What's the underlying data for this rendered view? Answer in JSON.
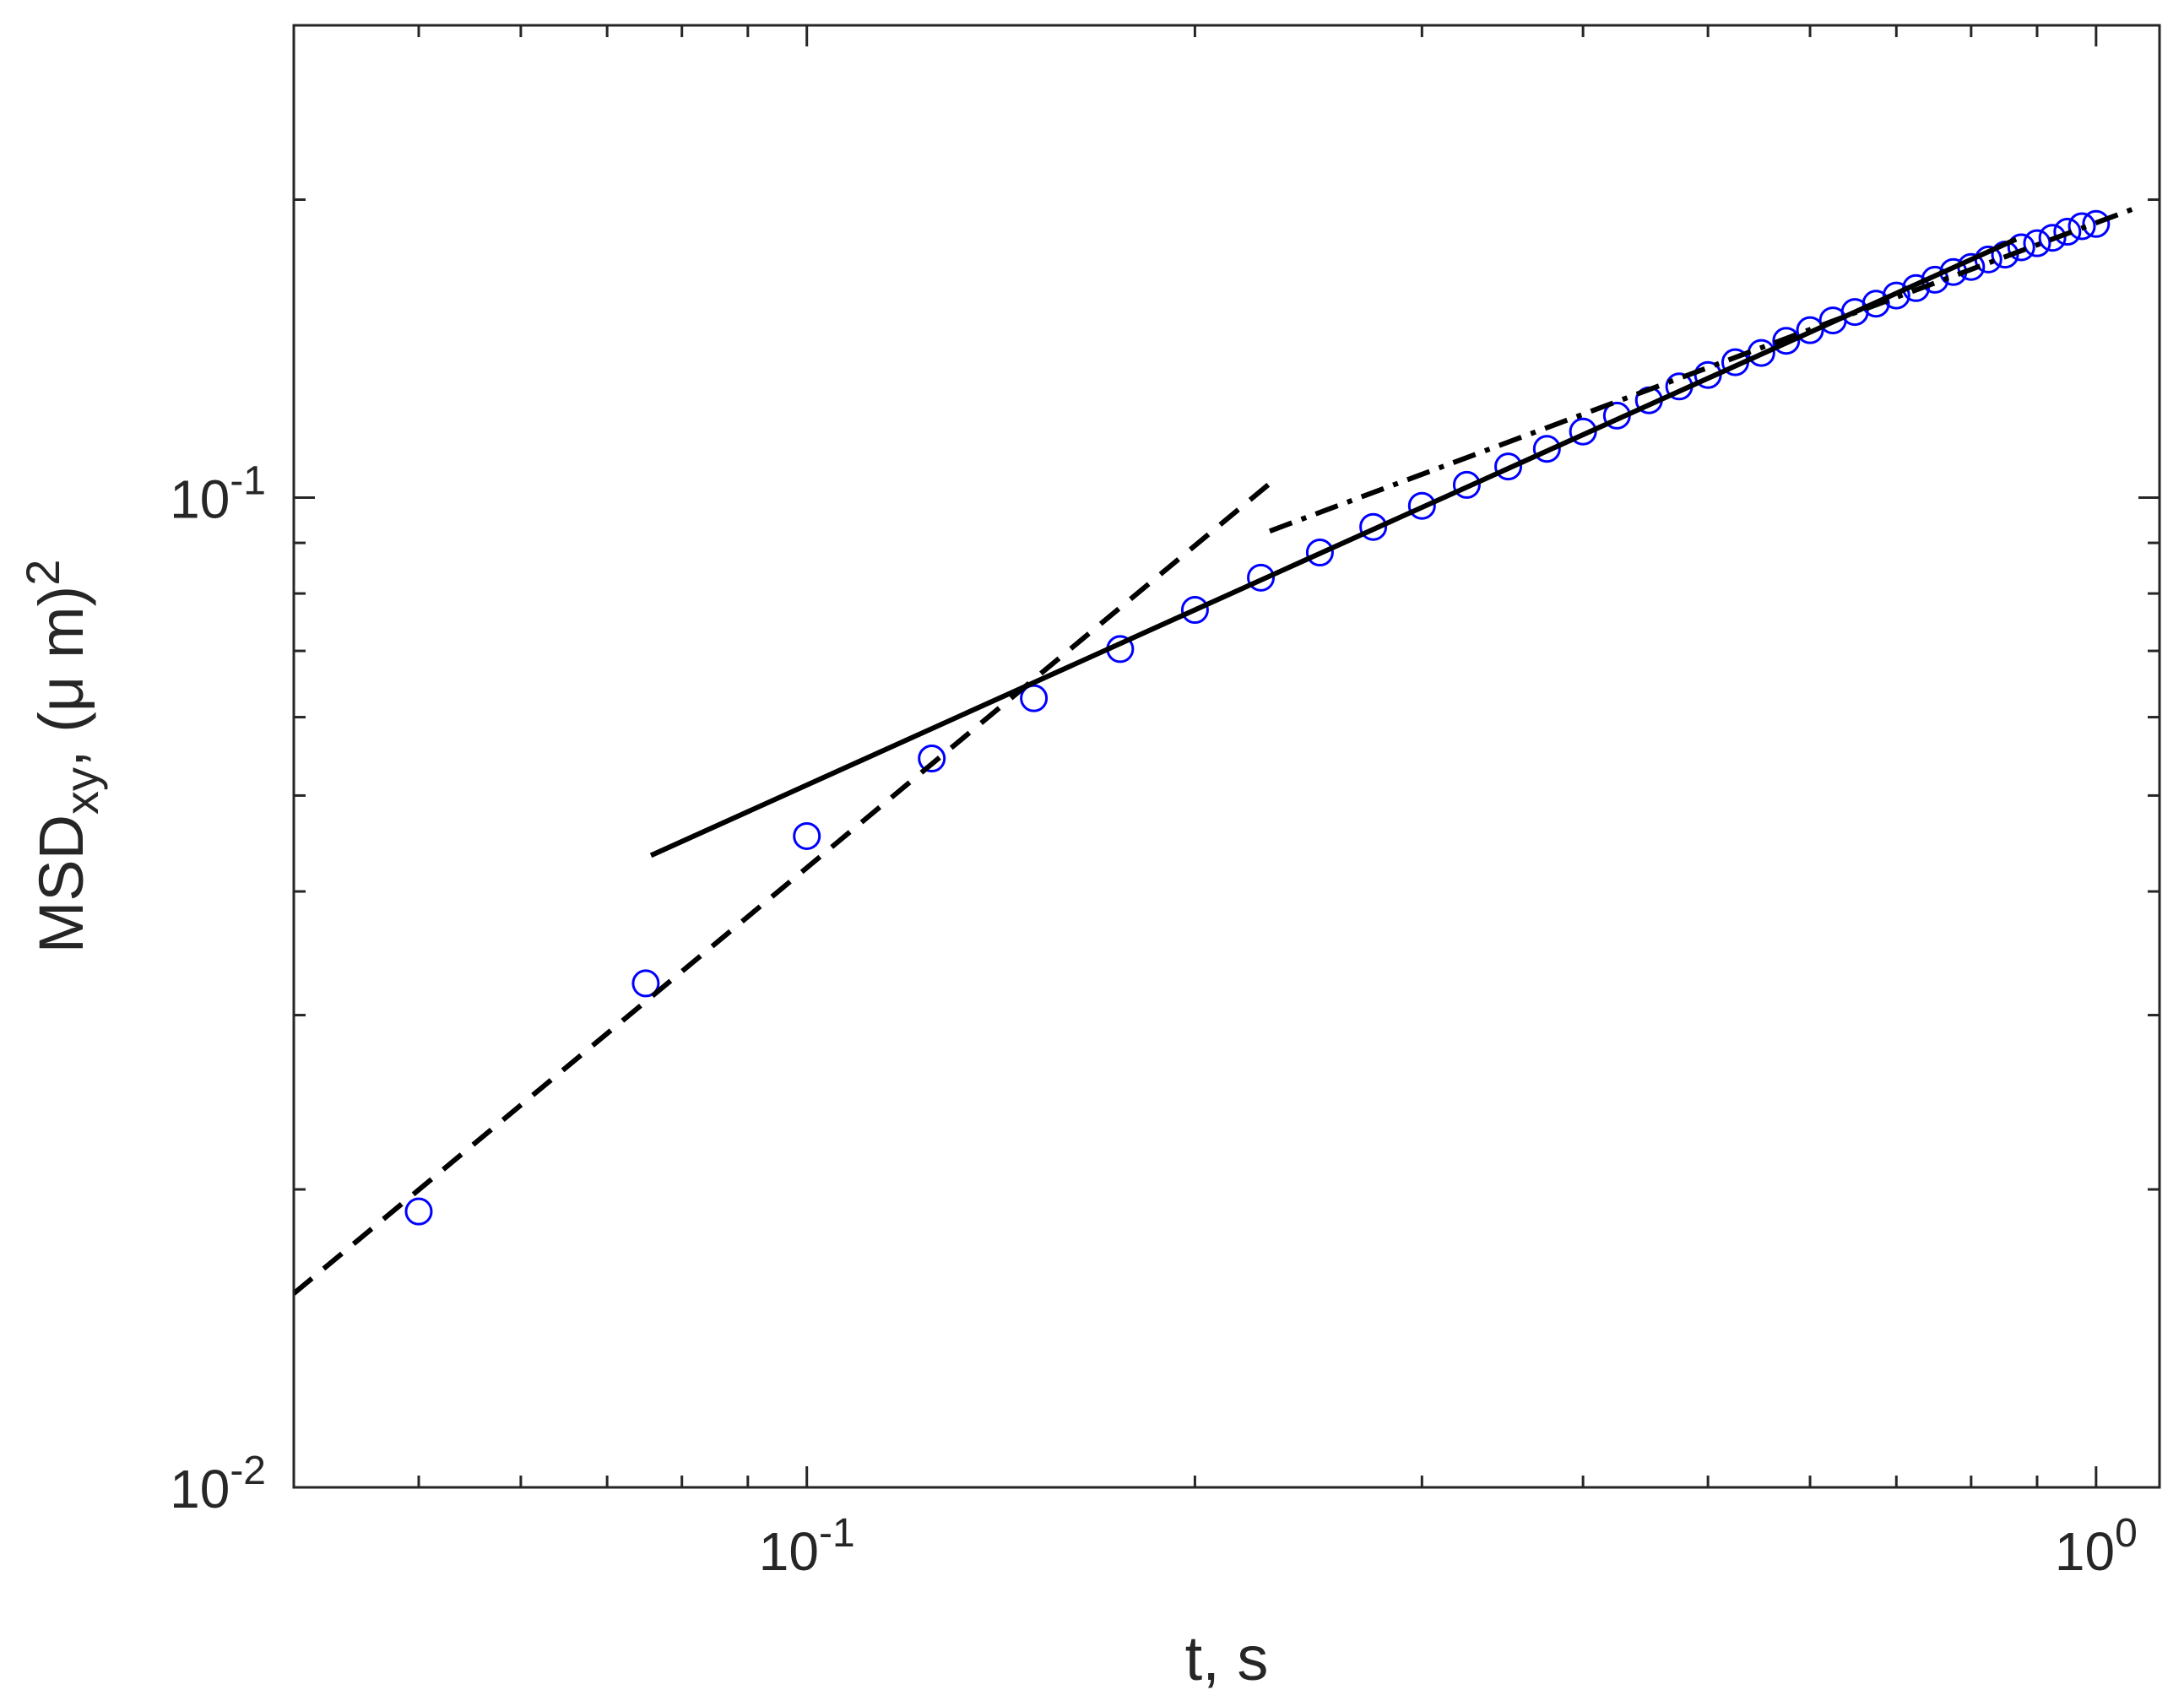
{
  "chart_data": {
    "type": "scatter",
    "xlabel": "t, s",
    "ylabel": {
      "text": "MSD",
      "sub": "xy",
      "rest": ", (μ m)",
      "sup": "2"
    },
    "xscale": "log",
    "yscale": "log",
    "xlim": [
      0.04,
      1.12
    ],
    "ylim": [
      0.01,
      0.3
    ],
    "xticks": [
      {
        "value": 0.1,
        "label": "10",
        "exponent": "-1"
      },
      {
        "value": 1,
        "label": "10",
        "exponent": "0"
      }
    ],
    "yticks": [
      {
        "value": 0.01,
        "label": "10",
        "exponent": "-2"
      },
      {
        "value": 0.1,
        "label": "10",
        "exponent": "-1"
      }
    ],
    "xminorticks": [
      0.05,
      0.06,
      0.07,
      0.08,
      0.09,
      0.2,
      0.3,
      0.4,
      0.5,
      0.6,
      0.7,
      0.8,
      0.9
    ],
    "yminorticks": [
      0.02,
      0.03,
      0.04,
      0.05,
      0.06,
      0.07,
      0.08,
      0.09,
      0.2,
      0.3
    ],
    "series": [
      {
        "color": "#0000ff",
        "line_style": "none",
        "marker": "circle",
        "x": [
          0.05,
          0.075,
          0.1,
          0.125,
          0.15,
          0.175,
          0.2,
          0.225,
          0.25,
          0.275,
          0.3,
          0.325,
          0.35,
          0.375,
          0.4,
          0.425,
          0.45,
          0.475,
          0.5,
          0.525,
          0.55,
          0.575,
          0.6,
          0.625,
          0.65,
          0.675,
          0.7,
          0.725,
          0.75,
          0.775,
          0.8,
          0.825,
          0.85,
          0.875,
          0.9,
          0.925,
          0.95,
          0.975,
          1.0
        ],
        "values": [
          0.019,
          0.0323,
          0.0455,
          0.0545,
          0.0627,
          0.0703,
          0.077,
          0.083,
          0.088,
          0.0934,
          0.0981,
          0.103,
          0.1075,
          0.112,
          0.1166,
          0.121,
          0.1254,
          0.1295,
          0.133,
          0.137,
          0.14,
          0.144,
          0.1476,
          0.151,
          0.154,
          0.157,
          0.16,
          0.1628,
          0.166,
          0.169,
          0.171,
          0.174,
          0.176,
          0.179,
          0.1807,
          0.183,
          0.1856,
          0.188,
          0.189
        ]
      },
      {
        "color": "#000000",
        "line_style": "dashed",
        "marker": "none",
        "x": [
          0.04,
          0.23
        ],
        "values": [
          0.0157,
          0.104
        ]
      },
      {
        "color": "#000000",
        "line_style": "solid",
        "marker": "none",
        "x": [
          0.0757,
          0.867
        ],
        "values": [
          0.0435,
          0.1824
        ]
      },
      {
        "color": "#000000",
        "line_style": "dashdot",
        "marker": "none",
        "x": [
          0.2286,
          1.072
        ],
        "values": [
          0.0925,
          0.196
        ]
      }
    ]
  }
}
